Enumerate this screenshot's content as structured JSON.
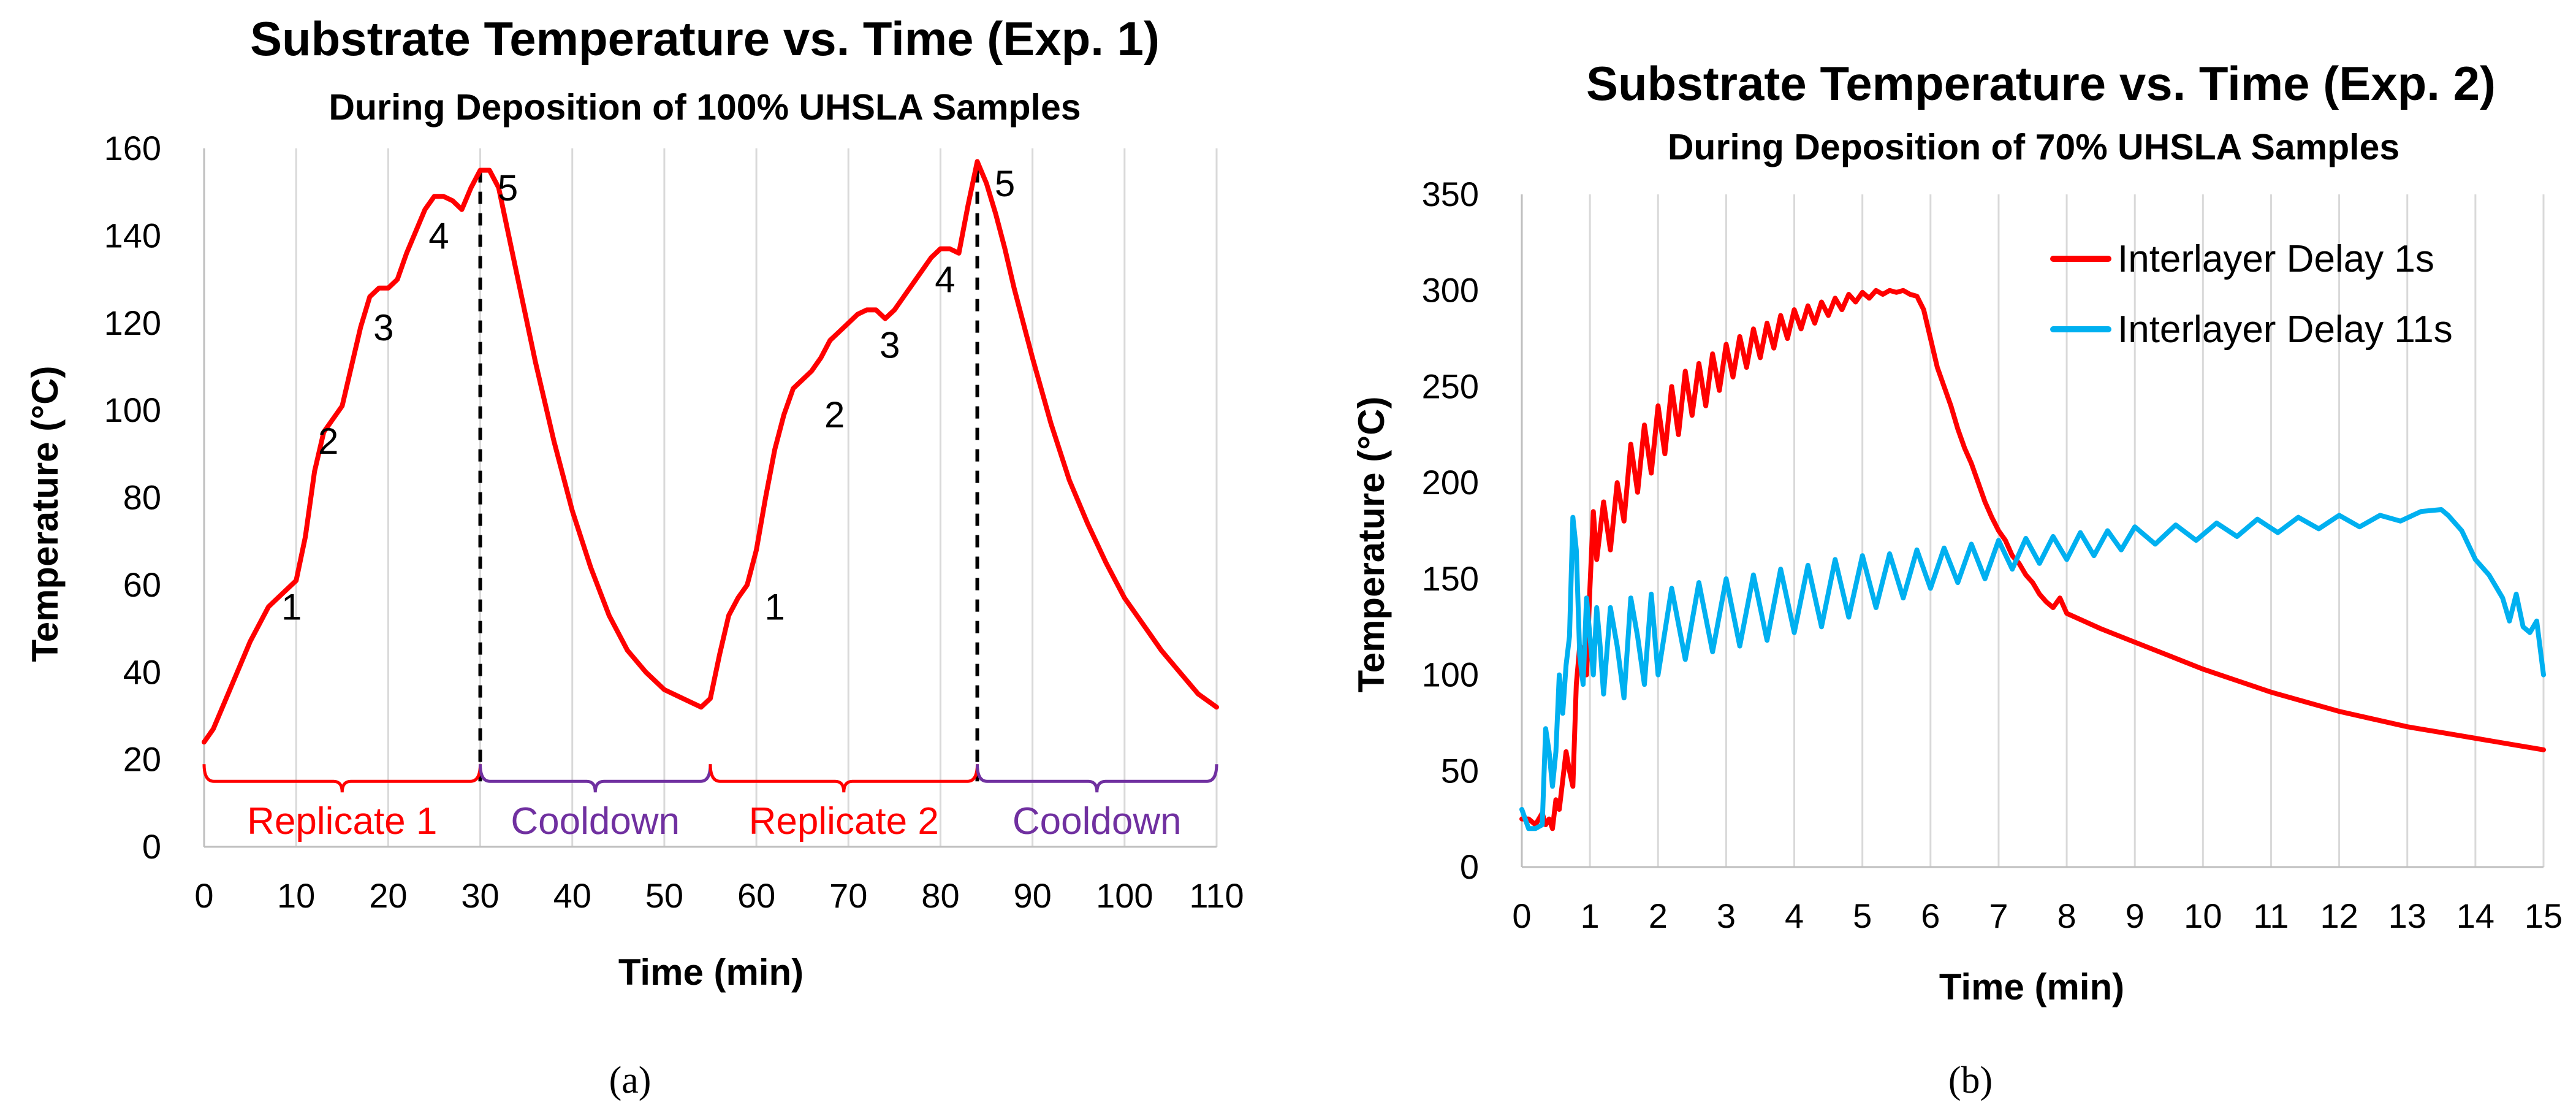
{
  "colors": {
    "red": "#ff0000",
    "blue": "#00b0f0",
    "purple": "#7030a0",
    "grid": "#d9d9d9",
    "axis": "#bfbfbf",
    "text": "#000000"
  },
  "chart_data": [
    {
      "type": "line",
      "title": "Substrate Temperature  vs. Time (Exp. 1)",
      "subtitle": "During Deposition of 100% UHSLA Samples",
      "xlabel": "Time (min)",
      "ylabel": "Temperature (°C)",
      "xlim": [
        0,
        110
      ],
      "ylim": [
        0,
        160
      ],
      "xticks": [
        0,
        10,
        20,
        30,
        40,
        50,
        60,
        70,
        80,
        90,
        100,
        110
      ],
      "yticks": [
        0,
        20,
        40,
        60,
        80,
        100,
        120,
        140,
        160
      ],
      "grid": "vertical only",
      "legend": "none",
      "caption": "(a)",
      "series": [
        {
          "color": "#ff0000",
          "x": [
            0,
            1,
            3,
            5,
            7,
            9,
            10,
            11,
            12,
            13,
            15,
            16,
            17,
            18,
            19,
            20,
            21,
            22,
            23,
            24,
            25,
            26,
            27,
            28,
            29,
            30,
            31,
            32,
            33,
            34,
            35,
            36,
            38,
            40,
            42,
            44,
            46,
            48,
            50,
            52,
            54,
            55,
            56,
            57,
            58,
            59,
            60,
            61,
            62,
            63,
            64,
            65,
            66,
            67,
            68,
            69,
            70,
            71,
            72,
            73,
            74,
            75,
            76,
            77,
            78,
            79,
            80,
            81,
            82,
            83,
            84,
            85,
            86,
            87,
            88,
            90,
            92,
            94,
            96,
            98,
            100,
            102,
            104,
            106,
            108,
            110
          ],
          "values": [
            24,
            27,
            37,
            47,
            55,
            59,
            61,
            71,
            86,
            95,
            101,
            110,
            119,
            126,
            128,
            128,
            130,
            136,
            141,
            146,
            149,
            149,
            148,
            146,
            151,
            155,
            155,
            151,
            141,
            131,
            121,
            111,
            93,
            77,
            64,
            53,
            45,
            40,
            36,
            34,
            32,
            34,
            44,
            53,
            57,
            60,
            68,
            80,
            91,
            99,
            105,
            107,
            109,
            112,
            116,
            118,
            120,
            122,
            123,
            123,
            121,
            123,
            126,
            129,
            132,
            135,
            137,
            137,
            136,
            147,
            157,
            152,
            145,
            137,
            128,
            112,
            97,
            84,
            74,
            65,
            57,
            51,
            45,
            40,
            35,
            32
          ]
        }
      ],
      "annotations": [
        {
          "text": "1",
          "x": 9.5,
          "y": 55
        },
        {
          "text": "2",
          "x": 13.5,
          "y": 93
        },
        {
          "text": "3",
          "x": 19.5,
          "y": 119
        },
        {
          "text": "4",
          "x": 25.5,
          "y": 140
        },
        {
          "text": "5",
          "x": 33,
          "y": 151
        },
        {
          "text": "1",
          "x": 62,
          "y": 55
        },
        {
          "text": "2",
          "x": 68.5,
          "y": 99
        },
        {
          "text": "3",
          "x": 74.5,
          "y": 115
        },
        {
          "text": "4",
          "x": 80.5,
          "y": 130
        },
        {
          "text": "5",
          "x": 87,
          "y": 152
        }
      ],
      "dividers": [
        30,
        84
      ],
      "divider_top": 155,
      "brackets": [
        {
          "label": "Replicate 1",
          "x0": 0,
          "x1": 30,
          "y": 15,
          "color": "#ff0000"
        },
        {
          "label": "Cooldown",
          "x0": 30,
          "x1": 55,
          "y": 15,
          "color": "#7030a0"
        },
        {
          "label": "Replicate 2",
          "x0": 55,
          "x1": 84,
          "y": 15,
          "color": "#ff0000"
        },
        {
          "label": "Cooldown",
          "x0": 84,
          "x1": 110,
          "y": 15,
          "color": "#7030a0"
        }
      ]
    },
    {
      "type": "line",
      "title": "Substrate Temperature vs. Time (Exp. 2)",
      "subtitle": "During Deposition of 70% UHSLA Samples",
      "xlabel": "Time (min)",
      "ylabel": "Temperature (°C)",
      "xlim": [
        0,
        15
      ],
      "ylim": [
        0,
        350
      ],
      "xticks": [
        0,
        1,
        2,
        3,
        4,
        5,
        6,
        7,
        8,
        9,
        10,
        11,
        12,
        13,
        14,
        15
      ],
      "yticks": [
        0,
        50,
        100,
        150,
        200,
        250,
        300,
        350
      ],
      "grid": "vertical only",
      "legend": "top-right",
      "caption": "(b)",
      "series": [
        {
          "name": "Interlayer Delay 1s",
          "color": "#ff0000",
          "x": [
            0,
            0.1,
            0.2,
            0.3,
            0.35,
            0.4,
            0.45,
            0.5,
            0.55,
            0.6,
            0.65,
            0.7,
            0.75,
            0.8,
            0.85,
            0.9,
            0.95,
            1.0,
            1.05,
            1.1,
            1.15,
            1.2,
            1.3,
            1.4,
            1.5,
            1.6,
            1.7,
            1.8,
            1.9,
            2.0,
            2.1,
            2.2,
            2.3,
            2.4,
            2.5,
            2.6,
            2.7,
            2.8,
            2.9,
            3.0,
            3.1,
            3.2,
            3.3,
            3.4,
            3.5,
            3.6,
            3.7,
            3.8,
            3.9,
            4.0,
            4.1,
            4.2,
            4.3,
            4.4,
            4.5,
            4.6,
            4.7,
            4.8,
            4.9,
            5.0,
            5.1,
            5.2,
            5.3,
            5.4,
            5.5,
            5.6,
            5.7,
            5.8,
            5.9,
            6.0,
            6.1,
            6.2,
            6.3,
            6.4,
            6.5,
            6.6,
            6.7,
            6.8,
            6.9,
            7.0,
            7.1,
            7.2,
            7.3,
            7.4,
            7.5,
            7.6,
            7.7,
            7.8,
            7.9,
            8.0,
            8.5,
            9.0,
            9.5,
            10.0,
            10.5,
            11.0,
            11.5,
            12.0,
            12.5,
            13.0,
            13.5,
            14.0,
            14.5,
            15.0
          ],
          "values": [
            25,
            25,
            22,
            28,
            22,
            25,
            20,
            35,
            30,
            45,
            60,
            50,
            42,
            95,
            115,
            110,
            100,
            145,
            185,
            160,
            175,
            190,
            165,
            200,
            180,
            220,
            195,
            230,
            205,
            240,
            215,
            250,
            225,
            258,
            235,
            262,
            240,
            267,
            248,
            272,
            255,
            276,
            260,
            280,
            265,
            283,
            270,
            287,
            275,
            290,
            280,
            292,
            283,
            294,
            287,
            296,
            290,
            298,
            294,
            299,
            296,
            300,
            298,
            300,
            299,
            300,
            298,
            297,
            290,
            275,
            260,
            250,
            240,
            228,
            218,
            210,
            200,
            190,
            182,
            175,
            170,
            162,
            158,
            152,
            148,
            142,
            138,
            135,
            140,
            132,
            124,
            117,
            110,
            103,
            97,
            91,
            86,
            81,
            77,
            73,
            70,
            67,
            64,
            61
          ]
        },
        {
          "name": "Interlayer Delay 11s",
          "color": "#00b0f0",
          "x": [
            0,
            0.1,
            0.2,
            0.3,
            0.35,
            0.4,
            0.45,
            0.5,
            0.55,
            0.6,
            0.65,
            0.7,
            0.75,
            0.8,
            0.85,
            0.9,
            0.95,
            1.0,
            1.05,
            1.1,
            1.15,
            1.2,
            1.3,
            1.4,
            1.5,
            1.6,
            1.7,
            1.8,
            1.9,
            2.0,
            2.2,
            2.4,
            2.6,
            2.8,
            3.0,
            3.2,
            3.4,
            3.6,
            3.8,
            4.0,
            4.2,
            4.4,
            4.6,
            4.8,
            5.0,
            5.2,
            5.4,
            5.6,
            5.8,
            6.0,
            6.2,
            6.4,
            6.6,
            6.8,
            7.0,
            7.2,
            7.4,
            7.6,
            7.8,
            8.0,
            8.2,
            8.4,
            8.6,
            8.8,
            9.0,
            9.3,
            9.6,
            9.9,
            10.2,
            10.5,
            10.8,
            11.1,
            11.4,
            11.7,
            12.0,
            12.3,
            12.6,
            12.9,
            13.2,
            13.5,
            13.6,
            13.8,
            14.0,
            14.2,
            14.4,
            14.5,
            14.6,
            14.7,
            14.8,
            14.9,
            15.0
          ],
          "values": [
            30,
            20,
            20,
            22,
            72,
            60,
            42,
            60,
            100,
            80,
            105,
            120,
            182,
            165,
            110,
            95,
            140,
            120,
            100,
            135,
            115,
            90,
            135,
            115,
            88,
            140,
            120,
            95,
            142,
            100,
            145,
            108,
            148,
            112,
            150,
            115,
            152,
            118,
            155,
            122,
            157,
            125,
            160,
            130,
            162,
            135,
            163,
            140,
            165,
            145,
            166,
            148,
            168,
            150,
            170,
            155,
            171,
            158,
            172,
            160,
            174,
            162,
            175,
            165,
            177,
            168,
            178,
            170,
            179,
            172,
            181,
            174,
            182,
            176,
            183,
            177,
            183,
            180,
            185,
            186,
            183,
            175,
            160,
            152,
            140,
            128,
            142,
            125,
            122,
            128,
            100
          ]
        }
      ],
      "legend_entries": [
        "Interlayer Delay 1s",
        "Interlayer Delay 11s"
      ]
    }
  ]
}
